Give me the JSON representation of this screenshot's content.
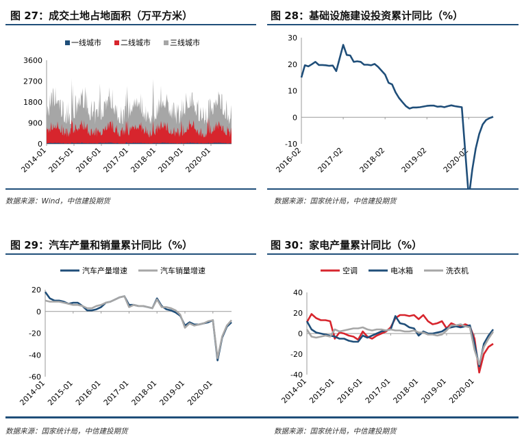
{
  "panels": [
    {
      "title": "图 27：成交土地占地面积（万平方米）",
      "source": "数据来源：Wind，中信建投期货",
      "chart_data": {
        "type": "area",
        "stacked": true,
        "legend_position": "top",
        "x_tick_labels": [
          "2014-01",
          "2015-01",
          "2016-01",
          "2017-01",
          "2018-01",
          "2019-01",
          "2020-01"
        ],
        "y_ticks": [
          0,
          900,
          1800,
          2700,
          3600
        ],
        "ylim": [
          0,
          3600
        ],
        "period": {
          "start": "2014-01",
          "end": "2020-10",
          "frequency": "weekly",
          "points": 355
        },
        "series": [
          {
            "name": "一线城市",
            "color": "#1f4e79",
            "level_min": 5,
            "level_max": 80
          },
          {
            "name": "二线城市",
            "color": "#d7252d",
            "level_min": 150,
            "level_max": 1500
          },
          {
            "name": "三线城市",
            "color": "#a6a6a6",
            "level_min": 600,
            "level_max": 3550
          }
        ]
      }
    },
    {
      "title": "图 28：基础设施建设投资累计同比（%）",
      "source": "数据来源：国家统计局，中信建投期货",
      "chart_data": {
        "type": "line",
        "x_tick_labels": [
          "2016-02",
          "2017-02",
          "2018-02",
          "2019-02",
          "2020-02"
        ],
        "y_ticks": [
          -10,
          0,
          10,
          20,
          30
        ],
        "ylim": [
          -10,
          30
        ],
        "series": [
          {
            "name": "",
            "color": "#1f4e79",
            "x": [
              "2016-02",
              "2016-03",
              "2016-04",
              "2016-05",
              "2016-06",
              "2016-07",
              "2016-08",
              "2016-09",
              "2016-10",
              "2016-11",
              "2016-12",
              "2017-02",
              "2017-03",
              "2017-04",
              "2017-05",
              "2017-06",
              "2017-07",
              "2017-08",
              "2017-09",
              "2017-10",
              "2017-11",
              "2017-12",
              "2018-02",
              "2018-03",
              "2018-04",
              "2018-05",
              "2018-06",
              "2018-07",
              "2018-08",
              "2018-09",
              "2018-10",
              "2018-11",
              "2018-12",
              "2019-02",
              "2019-03",
              "2019-04",
              "2019-05",
              "2019-06",
              "2019-07",
              "2019-08",
              "2019-09",
              "2019-10",
              "2019-11",
              "2019-12",
              "2020-02",
              "2020-03",
              "2020-04",
              "2020-05",
              "2020-06",
              "2020-07",
              "2020-08",
              "2020-09"
            ],
            "values": [
              15.0,
              19.6,
              19.2,
              20.0,
              20.9,
              19.7,
              19.7,
              19.6,
              19.4,
              19.5,
              17.4,
              27.3,
              23.5,
              23.3,
              20.9,
              21.1,
              20.9,
              19.8,
              19.8,
              19.6,
              20.1,
              19.0,
              16.1,
              13.0,
              12.4,
              9.4,
              7.3,
              5.7,
              4.2,
              3.3,
              3.7,
              3.7,
              3.8,
              4.3,
              4.4,
              4.4,
              4.0,
              4.1,
              3.8,
              4.2,
              4.5,
              4.2,
              4.0,
              3.8,
              -30.3,
              -19.7,
              -11.8,
              -6.3,
              -2.7,
              -1.0,
              -0.3,
              0.2
            ]
          }
        ]
      }
    },
    {
      "title": "图 29：汽车产量和销量累计同比（%）",
      "source": "数据来源：国家统计局，中信建投期货",
      "chart_data": {
        "type": "line",
        "legend_position": "top",
        "x_tick_labels": [
          "2014-01",
          "2015-01",
          "2016-01",
          "2017-01",
          "2018-01",
          "2019-01",
          "2020-01"
        ],
        "y_ticks": [
          -60,
          -40,
          -20,
          0,
          20
        ],
        "ylim": [
          -60,
          20
        ],
        "x": [
          "2014-01",
          "2014-03",
          "2014-05",
          "2014-07",
          "2014-09",
          "2014-11",
          "2015-01",
          "2015-03",
          "2015-05",
          "2015-07",
          "2015-09",
          "2015-11",
          "2016-01",
          "2016-03",
          "2016-05",
          "2016-07",
          "2016-09",
          "2016-11",
          "2017-01",
          "2017-03",
          "2017-05",
          "2017-07",
          "2017-09",
          "2017-11",
          "2018-01",
          "2018-03",
          "2018-05",
          "2018-07",
          "2018-09",
          "2018-11",
          "2019-01",
          "2019-03",
          "2019-05",
          "2019-07",
          "2019-09",
          "2019-11",
          "2020-01",
          "2020-03",
          "2020-05",
          "2020-07",
          "2020-09"
        ],
        "series": [
          {
            "name": "汽车产量增速",
            "color": "#1f4e79",
            "values": [
              18,
              12,
              10,
              10,
              9,
              7,
              8,
              8,
              5,
              1,
              1,
              2,
              4,
              8,
              9,
              11,
              13,
              14,
              6,
              6,
              5,
              5,
              4,
              3,
              12,
              5,
              2,
              1,
              -1,
              -4,
              -13,
              -10,
              -12,
              -12,
              -11,
              -10,
              -8,
              -45,
              -24,
              -14,
              -10
            ]
          },
          {
            "name": "汽车销量增速",
            "color": "#a6a6a6",
            "values": [
              10,
              9,
              9,
              9,
              8,
              7,
              6,
              6,
              5,
              3,
              3,
              5,
              6,
              8,
              9,
              11,
              13,
              14,
              4,
              6,
              5,
              5,
              4,
              3,
              11,
              4,
              4,
              3,
              1,
              -3,
              -15,
              -11,
              -13,
              -12,
              -11,
              -9,
              -8,
              -43,
              -23,
              -13,
              -8
            ]
          }
        ]
      }
    },
    {
      "title": "图 30：家电产量累计同比（%）",
      "source": "数据来源：国家统计局，中信建投期货",
      "chart_data": {
        "type": "line",
        "legend_position": "top",
        "x_tick_labels": [
          "2014-01",
          "2015-01",
          "2016-01",
          "2017-01",
          "2018-01",
          "2019-01",
          "2020-01"
        ],
        "y_ticks": [
          -40,
          -20,
          0,
          20,
          40
        ],
        "ylim": [
          -40,
          40
        ],
        "x": [
          "2014-01",
          "2014-03",
          "2014-05",
          "2014-07",
          "2014-09",
          "2014-11",
          "2015-01",
          "2015-03",
          "2015-05",
          "2015-07",
          "2015-09",
          "2015-11",
          "2016-01",
          "2016-03",
          "2016-05",
          "2016-07",
          "2016-09",
          "2016-11",
          "2017-01",
          "2017-03",
          "2017-05",
          "2017-07",
          "2017-09",
          "2017-11",
          "2018-01",
          "2018-03",
          "2018-05",
          "2018-07",
          "2018-09",
          "2018-11",
          "2019-01",
          "2019-03",
          "2019-05",
          "2019-07",
          "2019-09",
          "2019-11",
          "2020-01",
          "2020-03",
          "2020-05",
          "2020-07",
          "2020-09"
        ],
        "series": [
          {
            "name": "空调",
            "color": "#d7252d",
            "values": [
              11,
              19,
              15,
              13,
              13,
              12,
              -5,
              1,
              0,
              -2,
              -3,
              -6,
              2,
              -3,
              -5,
              -2,
              0,
              2,
              6,
              15,
              18,
              18,
              17,
              18,
              14,
              18,
              12,
              9,
              10,
              12,
              5,
              10,
              8,
              7,
              9,
              7,
              -5,
              -38,
              -20,
              -13,
              -10
            ]
          },
          {
            "name": "电冰箱",
            "color": "#1f4e79",
            "values": [
              12,
              4,
              1,
              0,
              -1,
              -2,
              -3,
              -5,
              -5,
              -7,
              -8,
              -8,
              -2,
              -4,
              -2,
              0,
              2,
              3,
              4,
              17,
              10,
              9,
              6,
              5,
              -2,
              2,
              0,
              0,
              1,
              2,
              5,
              6,
              7,
              6,
              7,
              8,
              -10,
              -32,
              -10,
              -2,
              4
            ]
          },
          {
            "name": "洗衣机",
            "color": "#a6a6a6",
            "values": [
              4,
              -3,
              -4,
              -3,
              -2,
              -3,
              4,
              2,
              3,
              4,
              5,
              5,
              6,
              4,
              3,
              4,
              4,
              3,
              4,
              3,
              3,
              2,
              2,
              3,
              1,
              1,
              -1,
              -1,
              -2,
              -1,
              3,
              8,
              8,
              9,
              7,
              6,
              -16,
              -30,
              -13,
              -5,
              2
            ]
          }
        ]
      }
    }
  ]
}
